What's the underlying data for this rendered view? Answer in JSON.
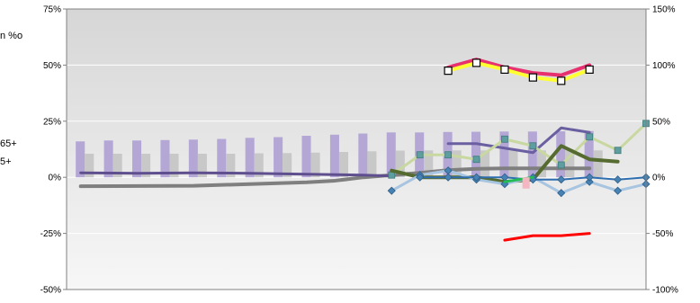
{
  "legend_fragments": [
    "n %o",
    "65+",
    "5+"
  ],
  "chart_data": {
    "type": "bar",
    "title": "",
    "xlabel": "",
    "ylabel": "",
    "grid": true,
    "left_axis": {
      "ylim": [
        -50,
        75
      ],
      "ticks": [
        "-50%",
        "-25%",
        "0%",
        "25%",
        "50%",
        "75%"
      ],
      "values": [
        -50,
        -25,
        0,
        25,
        50,
        75
      ]
    },
    "right_axis": {
      "ylim": [
        -100,
        150
      ],
      "ticks": [
        "-100%",
        "-50%",
        "0%",
        "50%",
        "100%",
        "150%"
      ],
      "values": [
        -100,
        -50,
        0,
        50,
        100,
        150
      ]
    },
    "categories_count": 19,
    "series": [
      {
        "type": "bar",
        "axis": "left",
        "color": "#b4a7d6",
        "values": [
          16,
          16.4,
          16.4,
          16.6,
          16.8,
          17.1,
          17.6,
          17.9,
          18.5,
          19,
          19.5,
          20,
          20,
          20.2,
          20.3,
          20.4,
          20.4,
          20.5,
          20.6
        ]
      },
      {
        "type": "bar",
        "axis": "left",
        "color": "#c8c8c8",
        "values": [
          10.5,
          10.5,
          10.5,
          10.5,
          10.5,
          10.5,
          10.7,
          10.8,
          11,
          11.3,
          11.6,
          11.9,
          12,
          12,
          12,
          12,
          12,
          12,
          12
        ]
      },
      {
        "type": "line",
        "axis": "left",
        "color": "#7f7f7f",
        "width": 4,
        "points": [
          [
            0,
            -4
          ],
          [
            4,
            -3.8
          ],
          [
            8,
            -2.2
          ],
          [
            9,
            -1.5
          ],
          [
            10,
            0
          ],
          [
            11,
            1
          ],
          [
            12,
            2
          ],
          [
            13,
            3.2
          ],
          [
            14,
            3.8
          ],
          [
            15,
            4
          ],
          [
            16,
            4
          ],
          [
            17,
            4
          ],
          [
            18,
            4
          ]
        ]
      },
      {
        "type": "line",
        "axis": "left",
        "color": "#5f4f8f",
        "width": 3,
        "points": [
          [
            0,
            2
          ],
          [
            2,
            1.8
          ],
          [
            4,
            2
          ],
          [
            6,
            1.8
          ],
          [
            8,
            1.4
          ],
          [
            10,
            1
          ],
          [
            11,
            0.6
          ]
        ]
      },
      {
        "type": "line",
        "axis": "right",
        "color": "#e8306e",
        "width": 4,
        "points": [
          [
            13,
            98
          ],
          [
            14,
            105
          ],
          [
            15,
            98
          ],
          [
            16,
            93
          ],
          [
            17,
            91
          ],
          [
            18,
            100
          ]
        ]
      },
      {
        "type": "line",
        "axis": "right",
        "color": "#ffff33",
        "width": 4,
        "marker": "square-white",
        "points": [
          [
            13,
            95
          ],
          [
            14,
            102
          ],
          [
            15,
            96
          ],
          [
            16,
            89
          ],
          [
            17,
            86
          ],
          [
            18,
            96
          ]
        ]
      },
      {
        "type": "line",
        "axis": "right",
        "color": "#ff0000",
        "width": 3,
        "points": [
          [
            15,
            -56
          ],
          [
            16,
            -52
          ],
          [
            17,
            -52
          ],
          [
            18,
            -50
          ]
        ]
      },
      {
        "type": "line",
        "axis": "right",
        "color": "#6a5fa0",
        "width": 3,
        "points": [
          [
            13,
            30
          ],
          [
            14,
            30
          ],
          [
            15,
            26
          ],
          [
            16,
            22
          ],
          [
            17,
            44
          ],
          [
            18,
            40
          ]
        ]
      },
      {
        "type": "line",
        "axis": "right",
        "color": "#c8d8a0",
        "width": 3,
        "marker": "square-teal",
        "points": [
          [
            11,
            2
          ],
          [
            12,
            20
          ],
          [
            13,
            20
          ],
          [
            14,
            16
          ],
          [
            15,
            34
          ],
          [
            16,
            28
          ],
          [
            17,
            11
          ],
          [
            18,
            36
          ],
          [
            19,
            24
          ],
          [
            20,
            48
          ]
        ]
      },
      {
        "type": "line",
        "axis": "right",
        "color": "#556b2f",
        "width": 4,
        "points": [
          [
            11,
            6
          ],
          [
            12,
            0
          ],
          [
            13,
            0
          ],
          [
            14,
            0
          ],
          [
            15,
            -4
          ],
          [
            16,
            -2
          ],
          [
            17,
            28
          ],
          [
            18,
            16
          ],
          [
            19,
            14
          ]
        ]
      },
      {
        "type": "line",
        "axis": "right",
        "color": "#a7c4e0",
        "width": 3,
        "marker": "diamond-blue",
        "points": [
          [
            11,
            -12
          ],
          [
            12,
            2
          ],
          [
            13,
            6
          ],
          [
            14,
            -2
          ],
          [
            15,
            -6
          ],
          [
            16,
            0
          ],
          [
            17,
            -14
          ],
          [
            18,
            -4
          ],
          [
            19,
            -12
          ],
          [
            20,
            -6
          ]
        ]
      },
      {
        "type": "line",
        "axis": "right",
        "color": "#2f6fb0",
        "width": 2,
        "marker": "diamond-blue",
        "points": [
          [
            12,
            0
          ],
          [
            13,
            0
          ],
          [
            14,
            0
          ],
          [
            15,
            0
          ],
          [
            16,
            -2
          ],
          [
            17,
            -2
          ],
          [
            18,
            0
          ],
          [
            19,
            -2
          ],
          [
            20,
            0
          ]
        ]
      },
      {
        "type": "line",
        "axis": "right",
        "color": "#22bb55",
        "width": 3,
        "points": [
          [
            15,
            -4
          ],
          [
            16,
            0
          ]
        ]
      }
    ]
  }
}
